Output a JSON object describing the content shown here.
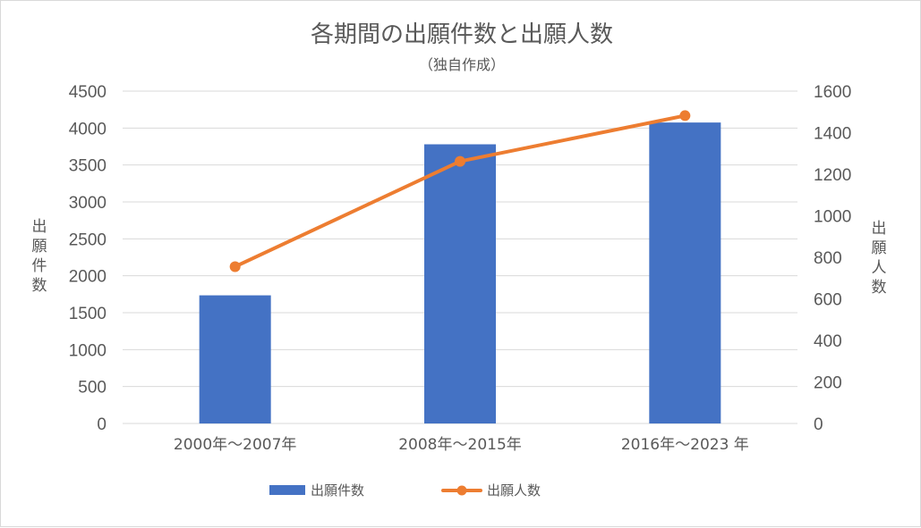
{
  "chart_data": {
    "type": "bar",
    "title": "各期間の出願件数と出願人数",
    "subtitle": "（独自作成）",
    "categories": [
      "2000年～2007年",
      "2008年～2015年",
      "2016年～2023 年"
    ],
    "series": [
      {
        "name": "出願件数",
        "type": "bar",
        "axis": "left",
        "color": "#4472C4",
        "values": [
          1735,
          3780,
          4075
        ]
      },
      {
        "name": "出願人数",
        "type": "line",
        "axis": "right",
        "color": "#ED7D31",
        "values": [
          755,
          1262,
          1482
        ]
      }
    ],
    "y_left": {
      "label": "出願件数",
      "range": [
        0,
        4500
      ],
      "ticks": [
        "0",
        "500",
        "1000",
        "1500",
        "2000",
        "2500",
        "3000",
        "3500",
        "4000",
        "4500"
      ]
    },
    "y_right": {
      "label": "出願人数",
      "range": [
        0,
        1600
      ],
      "ticks": [
        "0",
        "200",
        "400",
        "600",
        "800",
        "1000",
        "1200",
        "1400",
        "1600"
      ]
    },
    "grid": true,
    "legend": "bottom"
  }
}
